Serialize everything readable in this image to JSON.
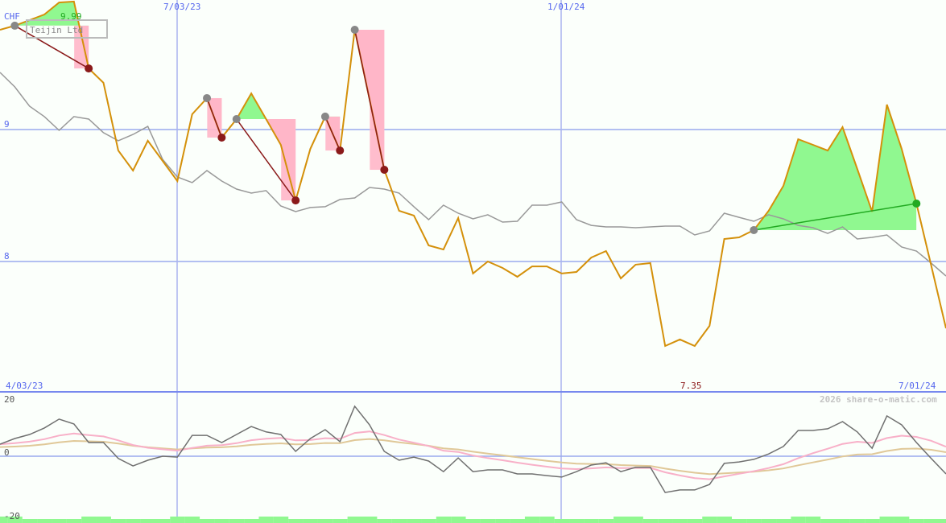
{
  "title": "Teijin Ltd",
  "currency": "CHF",
  "watermark": "2026 share-o-matic.com",
  "colors": {
    "price": "#d4900a",
    "average": "#999999",
    "grid": "#8899ee",
    "profit": "#90f890",
    "loss": "#ffb6c8",
    "exit_loss": "#8b1a1a",
    "exit_profit": "#22aa22",
    "oscillator": "#707070",
    "osc_fast": "#f8b0c8",
    "osc_slow": "#e0c898",
    "volume": "#90f890"
  },
  "chart_data": [
    {
      "type": "line",
      "title": "Teijin Ltd",
      "ylabel": "CHF",
      "ylim": [
        7.0,
        10.0
      ],
      "y_ticks": [
        "9",
        "8"
      ],
      "y_tick_values": [
        9,
        8
      ],
      "x_tick_labels": {
        "top": [
          "7/03/23",
          "1/01/24"
        ],
        "bottom_left": "4/03/23",
        "bottom_right": "7/01/24"
      },
      "max_label": "9.99",
      "min_label": "7.35",
      "grid": true,
      "series": [
        {
          "values": [
            9.756,
            9.787,
            9.829,
            9.872,
            9.963,
            9.97,
            9.463,
            9.354,
            8.841,
            8.689,
            8.915,
            8.762,
            8.61,
            9.116,
            9.238,
            8.939,
            9.079,
            9.274,
            9.079,
            8.884,
            8.463,
            8.854,
            9.098,
            8.841,
            9.756,
            9.23,
            8.695,
            8.384,
            8.348,
            8.122,
            8.091,
            8.329,
            7.909,
            8.0,
            7.951,
            7.884,
            7.963,
            7.963,
            7.909,
            7.921,
            8.03,
            8.079,
            7.872,
            7.976,
            7.988,
            7.36,
            7.409,
            7.36,
            7.512,
            8.171,
            8.183,
            8.238,
            8.384,
            8.573,
            8.927,
            8.884,
            8.841,
            9.018,
            8.701,
            8.378,
            9.189,
            8.854,
            8.439,
            7.97,
            7.494
          ]
        },
        {
          "values": [
            9.433,
            9.323,
            9.177,
            9.098,
            8.994,
            9.098,
            9.079,
            8.976,
            8.915,
            8.963,
            9.024,
            8.774,
            8.64,
            8.598,
            8.689,
            8.61,
            8.549,
            8.518,
            8.537,
            8.421,
            8.378,
            8.409,
            8.415,
            8.47,
            8.482,
            8.561,
            8.549,
            8.518,
            8.415,
            8.317,
            8.427,
            8.366,
            8.323,
            8.354,
            8.299,
            8.305,
            8.427,
            8.427,
            8.451,
            8.317,
            8.274,
            8.262,
            8.262,
            8.256,
            8.262,
            8.268,
            8.268,
            8.201,
            8.232,
            8.366,
            8.335,
            8.305,
            8.354,
            8.323,
            8.274,
            8.256,
            8.213,
            8.262,
            8.171,
            8.183,
            8.201,
            8.11,
            8.079,
            7.988,
            7.89
          ]
        }
      ],
      "trades": [
        {
          "entry": 1,
          "exit": 6,
          "result": "loss"
        },
        {
          "entry": 14,
          "exit": 15,
          "result": "loss"
        },
        {
          "entry": 16,
          "exit": 20,
          "result": "loss"
        },
        {
          "entry": 22,
          "exit": 23,
          "result": "loss"
        },
        {
          "entry": 24,
          "exit": 26,
          "result": "loss"
        },
        {
          "entry": 51,
          "exit": 62,
          "result": "profit"
        }
      ]
    },
    {
      "type": "line",
      "ylim": [
        -20,
        20
      ],
      "y_ticks": [
        "20",
        "0",
        "-20"
      ],
      "y_tick_values": [
        20,
        0,
        -20
      ],
      "series": [
        {
          "values": [
            4.2,
            6.2,
            7.6,
            9.9,
            13.0,
            11.3,
            4.8,
            4.8,
            -0.8,
            -3.4,
            -1.4,
            0,
            -0.3,
            7.3,
            7.3,
            4.8,
            7.6,
            10.4,
            8.5,
            7.6,
            1.7,
            6.2,
            9.3,
            5.1,
            17.5,
            11.0,
            1.7,
            -1.4,
            -0.3,
            -1.7,
            -5.4,
            -0.6,
            -5.4,
            -4.8,
            -4.8,
            -6.2,
            -6.2,
            -6.8,
            -7.3,
            -5.4,
            -3.1,
            -2.3,
            -5.4,
            -3.9,
            -3.9,
            -12.7,
            -11.8,
            -11.8,
            -9.9,
            -2.5,
            -2.0,
            -1.1,
            0.8,
            3.4,
            9.0,
            9.0,
            9.6,
            12.1,
            8.5,
            2.8,
            14.1,
            11.0,
            4.8,
            -0.8,
            -6.2
          ]
        }
      ]
    }
  ]
}
